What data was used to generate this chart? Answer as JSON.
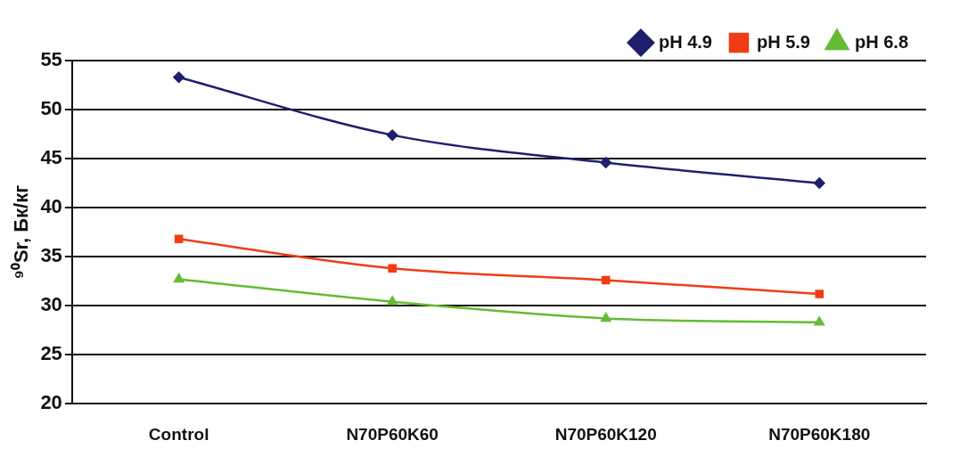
{
  "chart_data": {
    "type": "line",
    "ylabel": "⁹⁰Sr, Бк/кг",
    "categories": [
      "Control",
      "N70P60K60",
      "N70P60K120",
      "N70P60K180"
    ],
    "series": [
      {
        "name": "pH 4.9",
        "color": "#1f1f6e",
        "marker": "diamond",
        "values": [
          53.3,
          47.4,
          44.6,
          42.5
        ]
      },
      {
        "name": "pH 5.9",
        "color": "#f03c14",
        "marker": "square",
        "values": [
          36.8,
          33.8,
          32.6,
          31.2
        ]
      },
      {
        "name": "pH 6.8",
        "color": "#66bb33",
        "marker": "triangle",
        "values": [
          32.7,
          30.4,
          28.7,
          28.3
        ]
      }
    ],
    "ylim": [
      20,
      55
    ],
    "yticks": [
      20,
      25,
      30,
      35,
      40,
      45,
      50,
      55
    ],
    "grid": "y",
    "legend": "top right",
    "line_style": "solid"
  }
}
